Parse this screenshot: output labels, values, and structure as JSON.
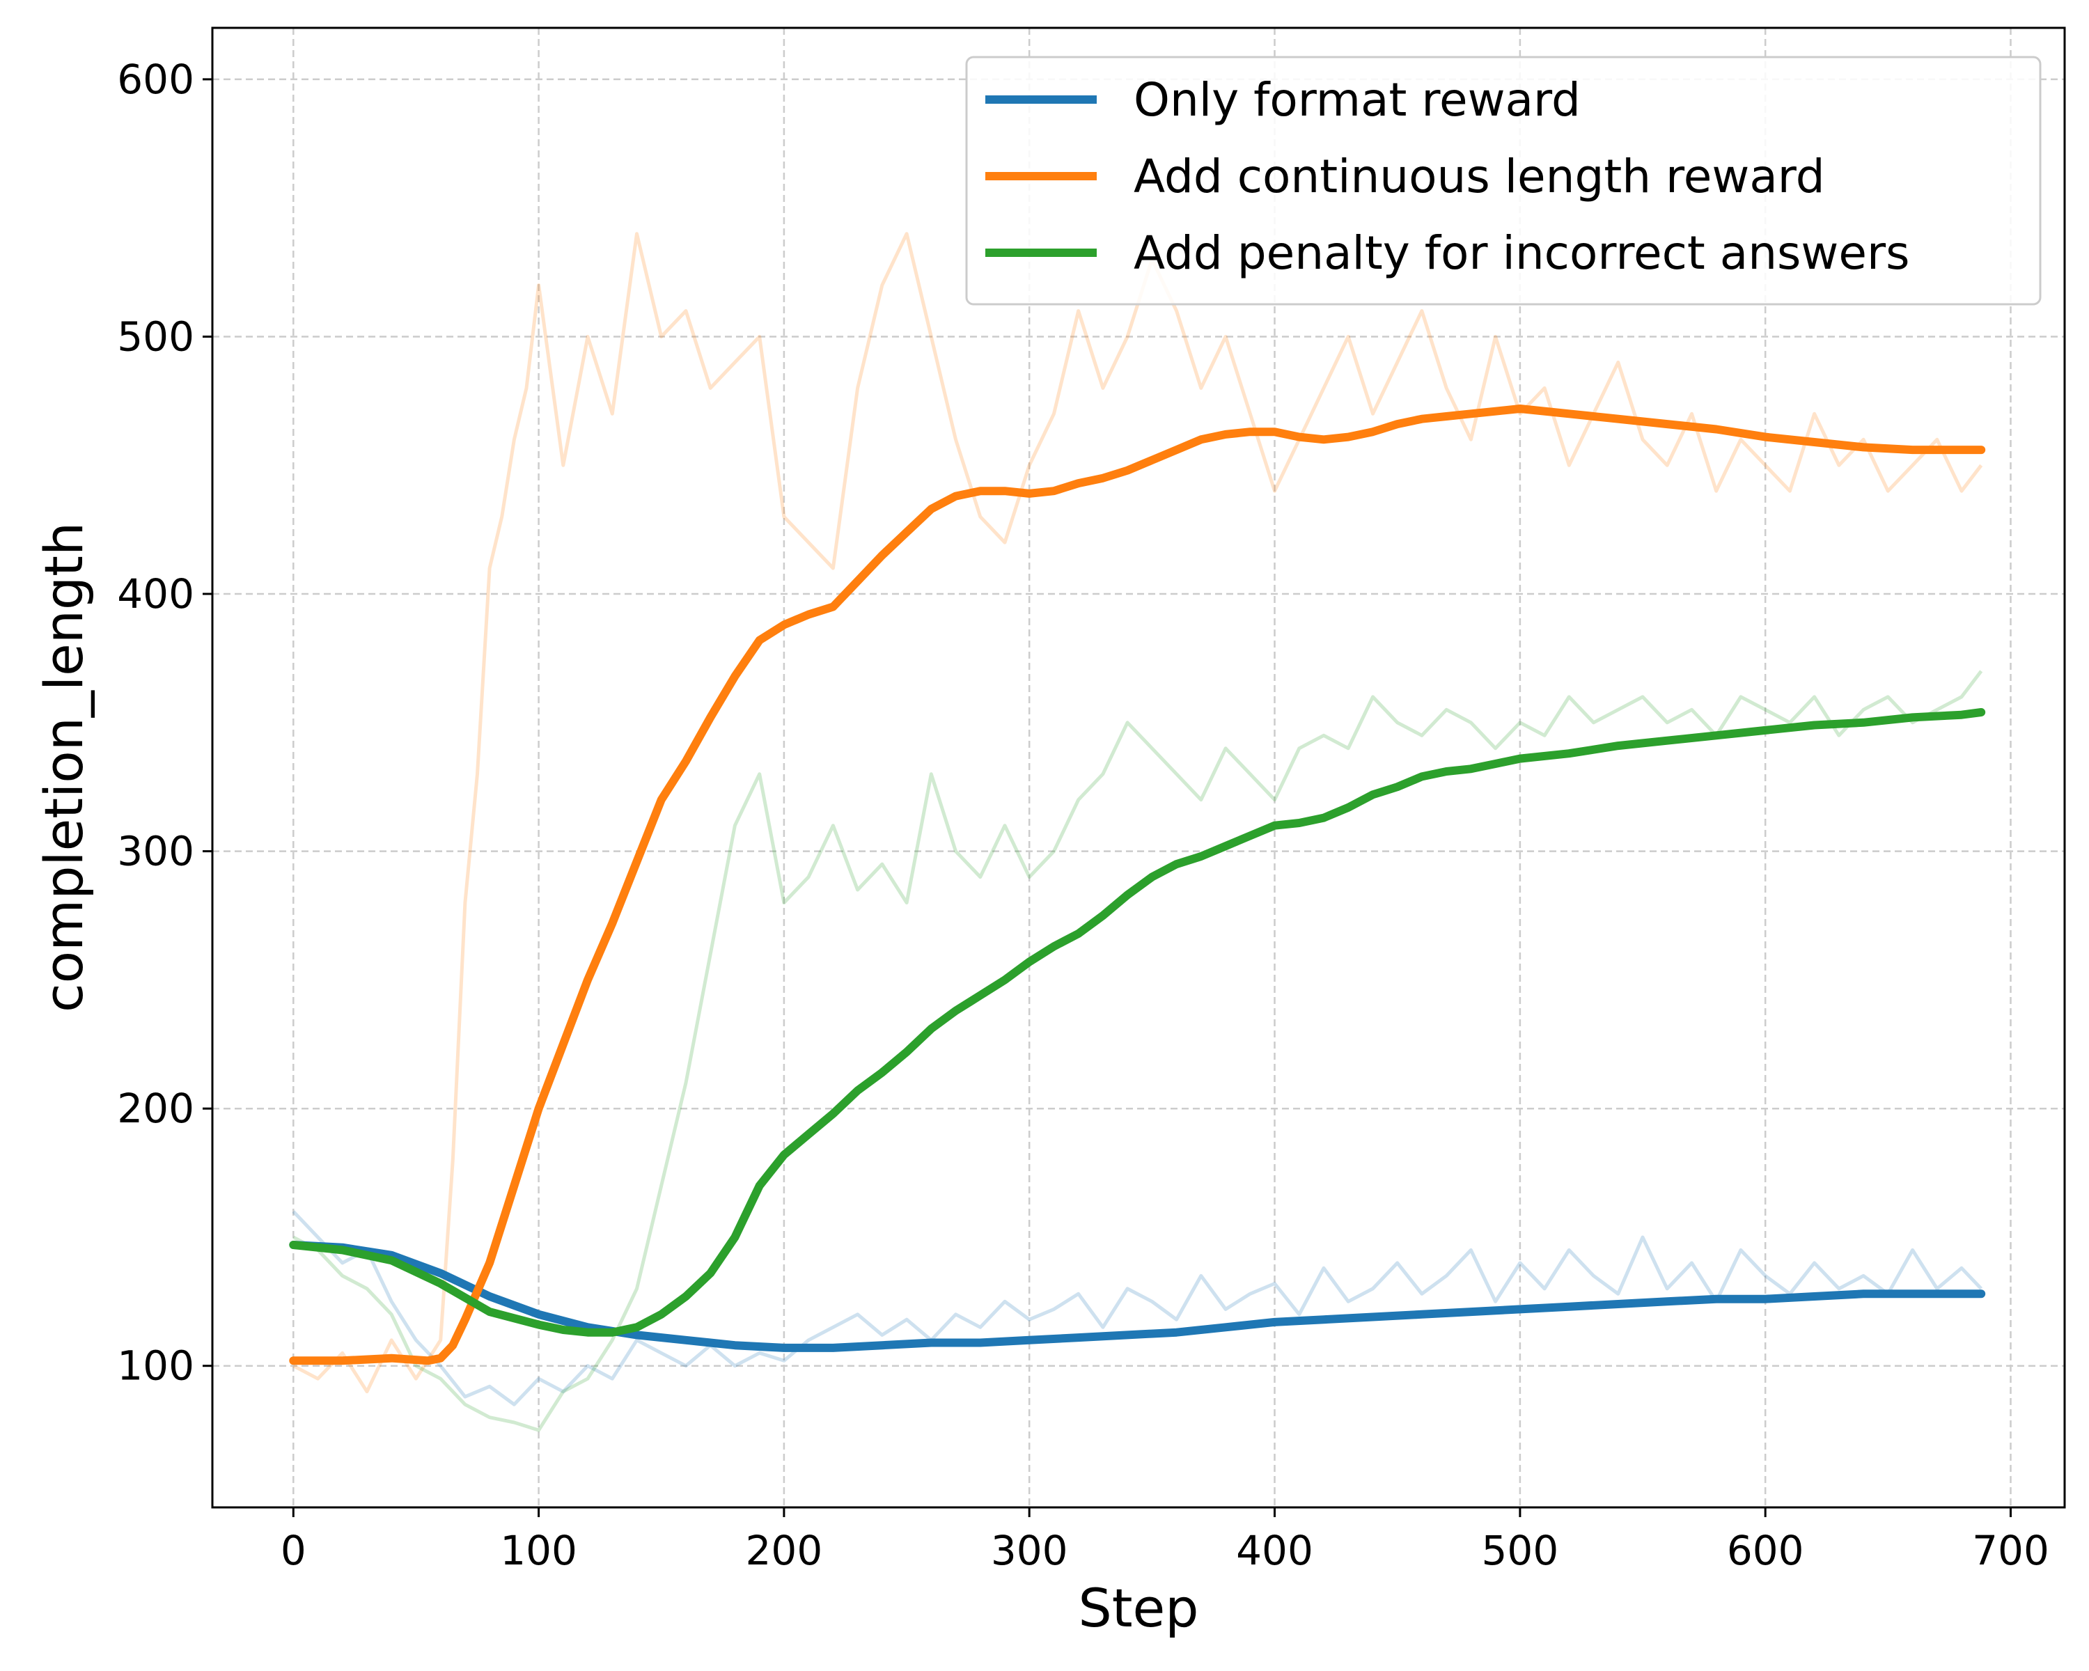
{
  "chart_data": {
    "type": "line",
    "xlabel": "Step",
    "ylabel": "completion_length",
    "xlim": [
      -33,
      722
    ],
    "ylim": [
      45,
      620
    ],
    "xticks": [
      0,
      100,
      200,
      300,
      400,
      500,
      600,
      700
    ],
    "yticks": [
      100,
      200,
      300,
      400,
      500,
      600
    ],
    "grid": true,
    "legend_position": "top-right",
    "series": [
      {
        "name": "Only format reward",
        "color": "#1f77b4",
        "raw": {
          "x": [
            0,
            10,
            20,
            30,
            40,
            50,
            60,
            70,
            80,
            90,
            100,
            110,
            120,
            130,
            140,
            150,
            160,
            170,
            180,
            190,
            200,
            210,
            220,
            230,
            240,
            250,
            260,
            270,
            280,
            290,
            300,
            310,
            320,
            330,
            340,
            350,
            360,
            370,
            380,
            390,
            400,
            410,
            420,
            430,
            440,
            450,
            460,
            470,
            480,
            490,
            500,
            510,
            520,
            530,
            540,
            550,
            560,
            570,
            580,
            590,
            600,
            610,
            620,
            630,
            640,
            650,
            660,
            670,
            680,
            688
          ],
          "y": [
            160,
            150,
            140,
            145,
            125,
            110,
            100,
            88,
            92,
            85,
            95,
            90,
            100,
            95,
            110,
            105,
            100,
            108,
            100,
            105,
            102,
            110,
            115,
            120,
            112,
            118,
            110,
            120,
            115,
            125,
            118,
            122,
            128,
            115,
            130,
            125,
            118,
            135,
            122,
            128,
            132,
            120,
            138,
            125,
            130,
            140,
            128,
            135,
            145,
            125,
            140,
            130,
            145,
            135,
            128,
            150,
            130,
            140,
            125,
            145,
            135,
            128,
            140,
            130,
            135,
            128,
            145,
            130,
            138,
            130
          ]
        },
        "smoothed": {
          "x": [
            0,
            20,
            40,
            60,
            80,
            100,
            120,
            140,
            160,
            180,
            200,
            220,
            240,
            260,
            280,
            300,
            320,
            340,
            360,
            380,
            400,
            420,
            440,
            460,
            480,
            500,
            520,
            540,
            560,
            580,
            600,
            620,
            640,
            660,
            680,
            688
          ],
          "y": [
            147,
            146,
            143,
            136,
            127,
            120,
            115,
            112,
            110,
            108,
            107,
            107,
            108,
            109,
            109,
            110,
            111,
            112,
            113,
            115,
            117,
            118,
            119,
            120,
            121,
            122,
            123,
            124,
            125,
            126,
            126,
            127,
            128,
            128,
            128,
            128
          ]
        }
      },
      {
        "name": "Add continuous length reward",
        "color": "#ff7f0e",
        "raw": {
          "x": [
            0,
            10,
            20,
            30,
            40,
            50,
            60,
            65,
            70,
            75,
            80,
            85,
            90,
            95,
            100,
            110,
            120,
            130,
            140,
            150,
            160,
            170,
            180,
            190,
            200,
            210,
            220,
            230,
            240,
            250,
            260,
            270,
            280,
            290,
            300,
            310,
            320,
            330,
            340,
            350,
            360,
            370,
            380,
            390,
            400,
            410,
            420,
            430,
            440,
            450,
            460,
            470,
            480,
            490,
            500,
            510,
            520,
            530,
            540,
            550,
            560,
            570,
            580,
            590,
            600,
            610,
            620,
            630,
            640,
            650,
            660,
            670,
            680,
            688
          ],
          "y": [
            100,
            95,
            105,
            90,
            110,
            95,
            110,
            180,
            280,
            330,
            410,
            430,
            460,
            480,
            520,
            450,
            500,
            470,
            540,
            500,
            510,
            480,
            490,
            500,
            430,
            420,
            410,
            480,
            520,
            540,
            500,
            460,
            430,
            420,
            450,
            470,
            510,
            480,
            500,
            530,
            510,
            480,
            500,
            470,
            440,
            460,
            480,
            500,
            470,
            490,
            510,
            480,
            460,
            500,
            470,
            480,
            450,
            470,
            490,
            460,
            450,
            470,
            440,
            460,
            450,
            440,
            470,
            450,
            460,
            440,
            450,
            460,
            440,
            450
          ]
        },
        "smoothed": {
          "x": [
            0,
            20,
            40,
            55,
            60,
            65,
            70,
            80,
            90,
            100,
            110,
            120,
            130,
            140,
            150,
            160,
            170,
            180,
            190,
            200,
            210,
            220,
            230,
            240,
            250,
            260,
            270,
            280,
            290,
            300,
            310,
            320,
            330,
            340,
            350,
            360,
            370,
            380,
            390,
            400,
            410,
            420,
            430,
            440,
            450,
            460,
            470,
            480,
            490,
            500,
            520,
            540,
            560,
            580,
            600,
            620,
            640,
            660,
            680,
            688
          ],
          "y": [
            102,
            102,
            103,
            102,
            103,
            108,
            118,
            140,
            170,
            200,
            225,
            250,
            272,
            296,
            320,
            335,
            352,
            368,
            382,
            388,
            392,
            395,
            405,
            415,
            424,
            433,
            438,
            440,
            440,
            439,
            440,
            443,
            445,
            448,
            452,
            456,
            460,
            462,
            463,
            463,
            461,
            460,
            461,
            463,
            466,
            468,
            469,
            470,
            471,
            472,
            470,
            468,
            466,
            464,
            461,
            459,
            457,
            456,
            456,
            456
          ]
        }
      },
      {
        "name": "Add penalty for incorrect answers",
        "color": "#2ca02c",
        "raw": {
          "x": [
            0,
            10,
            20,
            30,
            40,
            50,
            60,
            70,
            80,
            90,
            100,
            110,
            120,
            130,
            140,
            150,
            160,
            170,
            180,
            190,
            200,
            210,
            220,
            230,
            240,
            250,
            260,
            270,
            280,
            290,
            300,
            310,
            320,
            330,
            340,
            350,
            360,
            370,
            380,
            390,
            400,
            410,
            420,
            430,
            440,
            450,
            460,
            470,
            480,
            490,
            500,
            510,
            520,
            530,
            540,
            550,
            560,
            570,
            580,
            590,
            600,
            610,
            620,
            630,
            640,
            650,
            660,
            670,
            680,
            688
          ],
          "y": [
            150,
            145,
            135,
            130,
            120,
            100,
            95,
            85,
            80,
            78,
            75,
            90,
            95,
            110,
            130,
            170,
            210,
            260,
            310,
            330,
            280,
            290,
            310,
            285,
            295,
            280,
            330,
            300,
            290,
            310,
            290,
            300,
            320,
            330,
            350,
            340,
            330,
            320,
            340,
            330,
            320,
            340,
            345,
            340,
            360,
            350,
            345,
            355,
            350,
            340,
            350,
            345,
            360,
            350,
            355,
            360,
            350,
            355,
            345,
            360,
            355,
            350,
            360,
            345,
            355,
            360,
            350,
            355,
            360,
            370
          ]
        },
        "smoothed": {
          "x": [
            0,
            20,
            40,
            60,
            80,
            100,
            110,
            120,
            130,
            140,
            150,
            160,
            170,
            180,
            190,
            200,
            210,
            220,
            230,
            240,
            250,
            260,
            270,
            280,
            290,
            300,
            310,
            320,
            330,
            340,
            350,
            360,
            370,
            380,
            390,
            400,
            410,
            420,
            430,
            440,
            450,
            460,
            470,
            480,
            490,
            500,
            520,
            540,
            560,
            580,
            600,
            620,
            640,
            660,
            680,
            688
          ],
          "y": [
            147,
            145,
            141,
            132,
            121,
            116,
            114,
            113,
            113,
            115,
            120,
            127,
            136,
            150,
            170,
            182,
            190,
            198,
            207,
            214,
            222,
            231,
            238,
            244,
            250,
            257,
            263,
            268,
            275,
            283,
            290,
            295,
            298,
            302,
            306,
            310,
            311,
            313,
            317,
            322,
            325,
            329,
            331,
            332,
            334,
            336,
            338,
            341,
            343,
            345,
            347,
            349,
            350,
            352,
            353,
            354
          ]
        }
      }
    ]
  }
}
